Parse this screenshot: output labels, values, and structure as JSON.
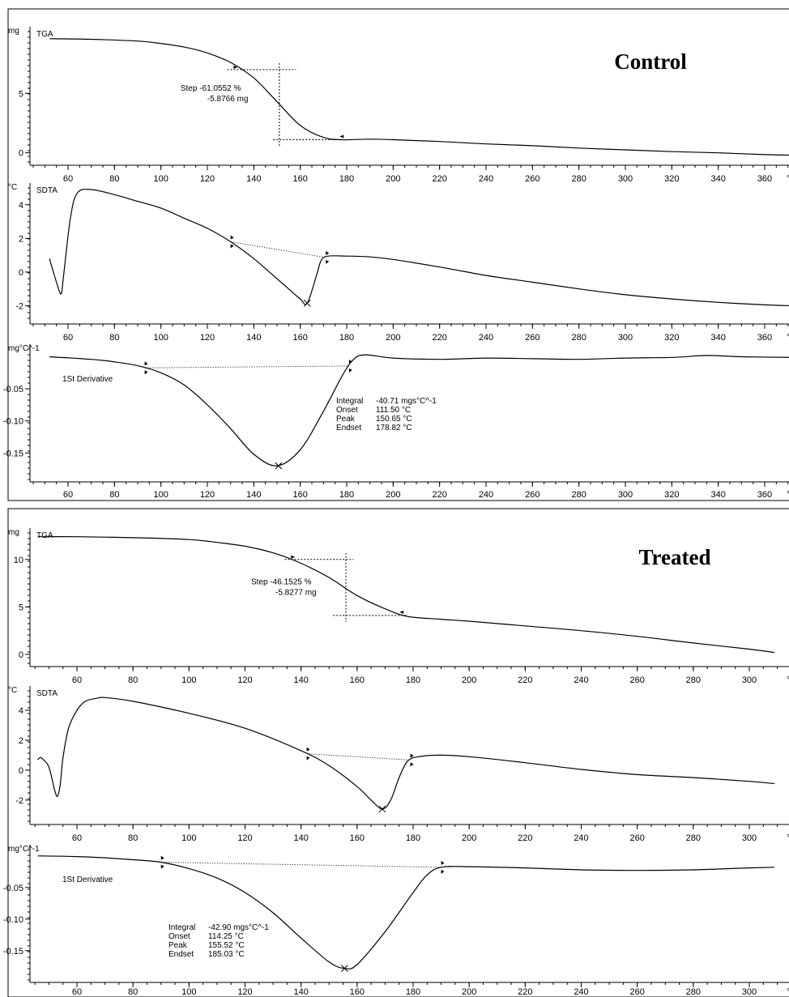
{
  "figures": [
    {
      "id": "control",
      "label": "Control",
      "x_ticks": [
        60,
        80,
        100,
        120,
        140,
        160,
        180,
        200,
        220,
        240,
        260,
        280,
        300,
        320,
        340,
        360
      ],
      "x_unit": "°C",
      "tga_step": {
        "line1": "Step  -61.0552 %",
        "line2": "-5.8766 mg"
      },
      "derivative_result": {
        "labels": [
          "Integral",
          "Onset",
          "Peak",
          "Endset"
        ],
        "values": [
          "-40.71 mgs°C^-1",
          "111.50 °C",
          "150.65 °C",
          "178.82 °C"
        ]
      }
    },
    {
      "id": "treated",
      "label": "Treated",
      "x_ticks": [
        60,
        80,
        100,
        120,
        140,
        160,
        180,
        200,
        220,
        240,
        260,
        280,
        300
      ],
      "x_unit": "°C",
      "tga_step": {
        "line1": "Step  -46.1525 %",
        "line2": "-5.8277 mg"
      },
      "derivative_result": {
        "labels": [
          "Integral",
          "Onset",
          "Peak",
          "Endset"
        ],
        "values": [
          "-42.90 mgs°C^-1",
          "114.25 °C",
          "155.52 °C",
          "185.03 °C"
        ]
      }
    }
  ],
  "chart_data": [
    {
      "type": "line",
      "panel": "Control",
      "title": "TGA",
      "ylabel": "mg",
      "xlabel": "°C",
      "xlim": [
        52,
        372
      ],
      "ylim": [
        -0.5,
        10.2
      ],
      "y_ticks": [
        0,
        5
      ],
      "series": [
        {
          "x": [
            52,
            70,
            90,
            100,
            110,
            120,
            130,
            140,
            150,
            160,
            170,
            178,
            190,
            200,
            220,
            240,
            260,
            280,
            300,
            320,
            340,
            360,
            372
          ],
          "y": [
            9.6,
            9.55,
            9.4,
            9.2,
            8.9,
            8.4,
            7.6,
            6.3,
            4.3,
            2.3,
            1.3,
            1.1,
            1.15,
            1.1,
            0.95,
            0.75,
            0.6,
            0.4,
            0.25,
            0.1,
            0.0,
            -0.15,
            -0.2
          ]
        }
      ],
      "step": {
        "from_x": 132,
        "to_x": 178,
        "mid_x": 151,
        "y_start": 7.0,
        "y_end": 1.1
      }
    },
    {
      "type": "line",
      "panel": "Control",
      "title": "SDTA",
      "ylabel": "°C",
      "xlabel": "°C",
      "xlim": [
        52,
        372
      ],
      "ylim": [
        -2.7,
        5.0
      ],
      "y_ticks": [
        -2,
        0,
        2,
        4
      ],
      "series": [
        {
          "x": [
            52,
            55,
            57,
            58,
            61,
            64,
            70,
            80,
            90,
            100,
            110,
            120,
            130,
            140,
            150,
            155,
            160,
            163,
            167,
            169,
            172,
            180,
            190,
            200,
            220,
            240,
            260,
            280,
            300,
            320,
            340,
            360,
            372
          ],
          "y": [
            0.8,
            -0.6,
            -1.3,
            -0.3,
            3.2,
            4.7,
            4.9,
            4.6,
            4.2,
            3.8,
            3.2,
            2.6,
            1.8,
            0.8,
            -0.4,
            -1.0,
            -1.6,
            -1.85,
            -0.2,
            0.7,
            0.95,
            0.95,
            0.9,
            0.75,
            0.3,
            -0.2,
            -0.6,
            -1.0,
            -1.35,
            -1.6,
            -1.8,
            -1.95,
            -2.0
          ]
        }
      ],
      "peak": {
        "x": 163,
        "y": -1.85
      }
    },
    {
      "type": "line",
      "panel": "Control",
      "title": "1St Derivative",
      "ylabel": "mg°C^-1",
      "xlabel": "°C",
      "xlim": [
        52,
        372
      ],
      "ylim": [
        -0.185,
        0.012
      ],
      "y_ticks": [
        -0.15,
        -0.1,
        -0.05
      ],
      "series": [
        {
          "x": [
            52,
            70,
            80,
            90,
            100,
            110,
            120,
            130,
            140,
            150,
            160,
            170,
            178,
            183,
            188,
            200,
            220,
            240,
            260,
            280,
            300,
            320,
            335,
            350,
            372
          ],
          "y": [
            0.0,
            -0.004,
            -0.008,
            -0.014,
            -0.025,
            -0.044,
            -0.075,
            -0.112,
            -0.152,
            -0.17,
            -0.145,
            -0.085,
            -0.03,
            -0.004,
            0.003,
            -0.002,
            -0.004,
            -0.002,
            -0.003,
            -0.004,
            -0.002,
            -0.001,
            0.002,
            0.0,
            -0.001
          ]
        }
      ],
      "peak": {
        "x": 150.65,
        "y": -0.17
      },
      "onset_x": 111.5,
      "endset_x": 178.82
    },
    {
      "type": "line",
      "panel": "Treated",
      "title": "TGA",
      "ylabel": "mg",
      "xlabel": "°C",
      "xlim": [
        46,
        309
      ],
      "ylim": [
        -0.6,
        12.8
      ],
      "y_ticks": [
        0,
        5,
        10
      ],
      "series": [
        {
          "x": [
            46,
            60,
            80,
            100,
            110,
            120,
            130,
            140,
            150,
            160,
            170,
            178,
            190,
            200,
            220,
            240,
            260,
            280,
            300,
            309
          ],
          "y": [
            12.4,
            12.4,
            12.3,
            12.1,
            11.8,
            11.4,
            10.7,
            9.6,
            8.1,
            6.2,
            4.8,
            4.0,
            3.7,
            3.5,
            3.0,
            2.5,
            1.9,
            1.2,
            0.55,
            0.2
          ]
        }
      ],
      "step": {
        "from_x": 137,
        "to_x": 176,
        "mid_x": 156,
        "y_start": 10.0,
        "y_end": 4.1
      }
    },
    {
      "type": "line",
      "panel": "Treated",
      "title": "SDTA",
      "ylabel": "°C",
      "xlabel": "°C",
      "xlim": [
        46,
        309
      ],
      "ylim": [
        -3.2,
        5.3
      ],
      "y_ticks": [
        -2,
        0,
        2,
        4
      ],
      "series": [
        {
          "x": [
            46,
            47,
            48,
            50,
            52,
            53,
            54,
            55,
            57,
            60,
            63,
            67,
            70,
            80,
            100,
            120,
            140,
            150,
            160,
            165,
            169,
            172,
            175,
            178,
            182,
            190,
            200,
            220,
            240,
            260,
            280,
            300,
            309
          ],
          "y": [
            0.7,
            0.85,
            0.7,
            0.2,
            -1.3,
            -1.75,
            -1.0,
            0.8,
            2.8,
            4.0,
            4.6,
            4.8,
            4.85,
            4.6,
            3.8,
            2.8,
            1.3,
            0.3,
            -1.1,
            -2.0,
            -2.6,
            -2.0,
            -0.5,
            0.6,
            0.9,
            1.0,
            0.9,
            0.5,
            0.05,
            -0.3,
            -0.5,
            -0.75,
            -0.9
          ]
        }
      ],
      "peak": {
        "x": 169,
        "y": -2.6
      }
    },
    {
      "type": "line",
      "panel": "Treated",
      "title": "1St Derivative",
      "ylabel": "mg°C^-1",
      "xlabel": "°C",
      "xlim": [
        46,
        309
      ],
      "ylim": [
        -0.19,
        0.01
      ],
      "y_ticks": [
        -0.15,
        -0.1,
        -0.05
      ],
      "series": [
        {
          "x": [
            46,
            60,
            70,
            80,
            90,
            100,
            110,
            120,
            130,
            140,
            150,
            155.5,
            160,
            170,
            180,
            185,
            190,
            200,
            220,
            240,
            260,
            280,
            300,
            309
          ],
          "y": [
            0.0,
            -0.001,
            -0.003,
            -0.006,
            -0.01,
            -0.02,
            -0.035,
            -0.058,
            -0.09,
            -0.13,
            -0.168,
            -0.178,
            -0.172,
            -0.12,
            -0.058,
            -0.03,
            -0.018,
            -0.017,
            -0.019,
            -0.022,
            -0.023,
            -0.022,
            -0.019,
            -0.018
          ]
        }
      ],
      "peak": {
        "x": 155.52,
        "y": -0.178
      },
      "onset_x": 114.25,
      "endset_x": 185.03
    }
  ],
  "colors": {
    "line": "#000000",
    "frame": "#000000",
    "background": "#ffffff"
  }
}
